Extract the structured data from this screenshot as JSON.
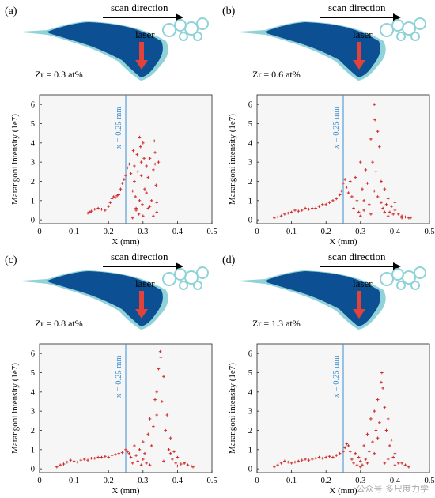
{
  "colors": {
    "pool_dark": "#0d4f93",
    "pool_light": "#8fd3d8",
    "arrow_red": "#e2423a",
    "scatter": "#cf2b2b",
    "ref_line": "#3b8fd0",
    "plot_bg": "#f6f6f6"
  },
  "watermark": "公众号·多尺度力学",
  "chart_data": [
    {
      "panel": "(a)",
      "scan_label": "scan direction",
      "laser_label": "laser",
      "composition": "Zr = 0.3 at%",
      "type": "scatter",
      "xlabel": "X (mm)",
      "ylabel": "Marangoni intensity (1e7)",
      "xlim": [
        0,
        0.5
      ],
      "ylim": [
        -0.2,
        6.5
      ],
      "xticks": [
        0,
        0.1,
        0.2,
        0.3,
        0.4,
        0.5
      ],
      "xtick_labels": [
        "0",
        "0.1",
        "0.2",
        "0.3",
        "0.4",
        "0.5"
      ],
      "yticks": [
        0,
        1,
        2,
        3,
        4,
        5,
        6
      ],
      "ref_line": {
        "x": 0.25,
        "label": "x = 0.25 mm"
      },
      "series": [
        {
          "x": [
            0.14,
            0.145,
            0.15,
            0.16,
            0.17,
            0.18,
            0.19,
            0.2,
            0.205,
            0.21,
            0.215,
            0.22,
            0.225,
            0.23,
            0.235,
            0.24,
            0.245,
            0.25,
            0.255,
            0.26,
            0.265,
            0.27,
            0.272,
            0.275,
            0.278,
            0.28,
            0.283,
            0.285,
            0.288,
            0.29,
            0.293,
            0.295,
            0.298,
            0.3,
            0.303,
            0.305,
            0.31,
            0.315,
            0.32,
            0.325,
            0.33,
            0.333,
            0.335,
            0.338,
            0.34,
            0.345,
            0.27,
            0.28,
            0.29,
            0.3,
            0.31,
            0.32,
            0.33,
            0.34,
            0.275,
            0.295,
            0.315,
            0.335
          ],
          "y": [
            0.35,
            0.4,
            0.45,
            0.55,
            0.6,
            0.55,
            0.5,
            0.7,
            0.9,
            1.1,
            1.2,
            1.15,
            1.25,
            1.3,
            1.6,
            1.9,
            2.1,
            2.3,
            2.7,
            2.9,
            2.4,
            1.5,
            3.6,
            2.8,
            1.2,
            0.5,
            3.4,
            2.5,
            0.3,
            4.3,
            3.8,
            2.3,
            0.8,
            4.0,
            3.2,
            1.6,
            2.8,
            0.6,
            3.2,
            1.0,
            2.6,
            4.1,
            3.5,
            1.8,
            0.4,
            3.0,
            0.1,
            0.6,
            1.0,
            0.2,
            1.4,
            0.7,
            0.2,
            0.9,
            2.0,
            3.0,
            2.2,
            2.9
          ]
        }
      ]
    },
    {
      "panel": "(b)",
      "scan_label": "scan direction",
      "laser_label": "laser",
      "composition": "Zr = 0.6 at%",
      "type": "scatter",
      "xlabel": "X (mm)",
      "ylabel": "Marangoni intensity (1e7)",
      "xlim": [
        0,
        0.5
      ],
      "ylim": [
        -0.2,
        6.5
      ],
      "xticks": [
        0,
        0.1,
        0.2,
        0.3,
        0.4,
        0.5
      ],
      "xtick_labels": [
        "0",
        "0.1",
        "0.2",
        "0.3",
        "0.4",
        "0.5"
      ],
      "yticks": [
        0,
        1,
        2,
        3,
        4,
        5,
        6
      ],
      "ref_line": {
        "x": 0.25,
        "label": "x = 0.25 mm"
      },
      "series": [
        {
          "x": [
            0.05,
            0.06,
            0.07,
            0.08,
            0.09,
            0.1,
            0.11,
            0.12,
            0.13,
            0.14,
            0.15,
            0.16,
            0.17,
            0.18,
            0.19,
            0.2,
            0.21,
            0.22,
            0.23,
            0.24,
            0.245,
            0.25,
            0.255,
            0.26,
            0.265,
            0.27,
            0.275,
            0.28,
            0.285,
            0.29,
            0.295,
            0.3,
            0.305,
            0.31,
            0.315,
            0.32,
            0.325,
            0.33,
            0.335,
            0.34,
            0.342,
            0.345,
            0.35,
            0.355,
            0.36,
            0.365,
            0.37,
            0.375,
            0.38,
            0.385,
            0.39,
            0.395,
            0.4,
            0.41,
            0.42,
            0.43,
            0.44,
            0.445,
            0.3,
            0.31,
            0.33,
            0.34,
            0.36,
            0.38,
            0.4,
            0.42,
            0.35,
            0.37
          ],
          "y": [
            0.1,
            0.15,
            0.2,
            0.3,
            0.35,
            0.4,
            0.5,
            0.45,
            0.5,
            0.6,
            0.55,
            0.6,
            0.6,
            0.7,
            0.8,
            0.8,
            0.9,
            1.0,
            1.1,
            1.3,
            1.5,
            1.9,
            2.1,
            1.7,
            1.4,
            2.0,
            1.2,
            0.6,
            2.2,
            1.0,
            0.4,
            3.0,
            1.6,
            0.5,
            2.6,
            1.9,
            0.8,
            4.2,
            3.0,
            6.0,
            5.2,
            2.5,
            1.2,
            3.8,
            2.0,
            0.6,
            1.6,
            0.8,
            1.1,
            0.4,
            0.7,
            0.3,
            0.5,
            0.3,
            0.2,
            0.15,
            0.1,
            0.1,
            0.2,
            1.0,
            0.3,
            1.5,
            0.9,
            0.2,
            0.9,
            0.1,
            4.6,
            0.4
          ]
        }
      ]
    },
    {
      "panel": "(c)",
      "scan_label": "scan direction",
      "laser_label": "laser",
      "composition": "Zr = 0.8 at%",
      "type": "scatter",
      "xlabel": "X (mm)",
      "ylabel": "Marangoni intensity (1e7)",
      "xlim": [
        0,
        0.5
      ],
      "ylim": [
        -0.2,
        6.5
      ],
      "xticks": [
        0,
        0.1,
        0.2,
        0.3,
        0.4,
        0.5
      ],
      "xtick_labels": [
        "0",
        "0.1",
        "0.2",
        "0.3",
        "0.4",
        "0.5"
      ],
      "yticks": [
        0,
        1,
        2,
        3,
        4,
        5,
        6
      ],
      "ref_line": {
        "x": 0.25,
        "label": "x = 0.25 mm"
      },
      "series": [
        {
          "x": [
            0.05,
            0.06,
            0.07,
            0.08,
            0.09,
            0.1,
            0.11,
            0.12,
            0.13,
            0.14,
            0.15,
            0.16,
            0.17,
            0.18,
            0.19,
            0.2,
            0.21,
            0.22,
            0.23,
            0.24,
            0.25,
            0.255,
            0.26,
            0.265,
            0.27,
            0.275,
            0.28,
            0.285,
            0.29,
            0.295,
            0.3,
            0.305,
            0.31,
            0.315,
            0.32,
            0.325,
            0.33,
            0.335,
            0.34,
            0.345,
            0.35,
            0.352,
            0.355,
            0.36,
            0.365,
            0.37,
            0.375,
            0.38,
            0.385,
            0.39,
            0.395,
            0.4,
            0.41,
            0.42,
            0.43,
            0.44,
            0.445,
            0.3,
            0.32,
            0.34,
            0.36,
            0.38,
            0.4,
            0.42
          ],
          "y": [
            0.1,
            0.2,
            0.25,
            0.35,
            0.45,
            0.4,
            0.35,
            0.45,
            0.5,
            0.45,
            0.55,
            0.55,
            0.6,
            0.6,
            0.65,
            0.6,
            0.7,
            0.75,
            0.8,
            0.85,
            1.0,
            0.9,
            0.8,
            0.6,
            0.3,
            1.2,
            0.7,
            0.4,
            1.0,
            0.2,
            1.4,
            0.8,
            0.3,
            1.8,
            2.6,
            1.2,
            2.2,
            3.6,
            4.0,
            5.2,
            6.1,
            5.8,
            3.5,
            4.8,
            2.0,
            2.8,
            1.0,
            1.6,
            0.5,
            0.9,
            0.3,
            0.6,
            0.25,
            0.3,
            0.2,
            0.15,
            0.1,
            0.5,
            0.2,
            2.8,
            0.4,
            0.8,
            0.15,
            0.3
          ]
        }
      ]
    },
    {
      "panel": "(d)",
      "scan_label": "scan direction",
      "laser_label": "laser",
      "composition": "Zr = 1.3 at%",
      "type": "scatter",
      "xlabel": "X (mm)",
      "ylabel": "Marangoni intensity (1e7)",
      "xlim": [
        0,
        0.5
      ],
      "ylim": [
        -0.2,
        6.5
      ],
      "xticks": [
        0,
        0.1,
        0.2,
        0.3,
        0.4,
        0.5
      ],
      "xtick_labels": [
        "0",
        "0.1",
        "0.2",
        "0.3",
        "0.4",
        "0.5"
      ],
      "yticks": [
        0,
        1,
        2,
        3,
        4,
        5,
        6
      ],
      "ref_line": {
        "x": 0.25,
        "label": "x = 0.25 mm"
      },
      "series": [
        {
          "x": [
            0.05,
            0.06,
            0.07,
            0.08,
            0.09,
            0.1,
            0.11,
            0.12,
            0.13,
            0.14,
            0.15,
            0.16,
            0.17,
            0.18,
            0.19,
            0.2,
            0.21,
            0.22,
            0.23,
            0.24,
            0.25,
            0.255,
            0.26,
            0.265,
            0.27,
            0.275,
            0.28,
            0.285,
            0.29,
            0.295,
            0.3,
            0.305,
            0.31,
            0.315,
            0.32,
            0.325,
            0.33,
            0.335,
            0.34,
            0.345,
            0.35,
            0.355,
            0.36,
            0.362,
            0.365,
            0.37,
            0.375,
            0.38,
            0.385,
            0.39,
            0.395,
            0.4,
            0.41,
            0.42,
            0.43,
            0.44,
            0.3,
            0.32,
            0.34,
            0.35,
            0.37,
            0.38,
            0.4
          ],
          "y": [
            0.1,
            0.2,
            0.3,
            0.4,
            0.35,
            0.3,
            0.35,
            0.4,
            0.45,
            0.5,
            0.45,
            0.5,
            0.55,
            0.6,
            0.55,
            0.6,
            0.65,
            0.6,
            0.7,
            0.8,
            0.9,
            1.1,
            1.3,
            1.2,
            0.9,
            0.5,
            0.3,
            0.8,
            0.2,
            0.6,
            0.4,
            0.2,
            1.2,
            0.5,
            1.8,
            0.9,
            2.6,
            1.4,
            3.0,
            2.0,
            3.6,
            2.4,
            4.5,
            5.0,
            4.2,
            3.2,
            2.0,
            2.6,
            1.2,
            1.5,
            0.6,
            0.8,
            0.3,
            0.3,
            0.2,
            0.1,
            0.1,
            0.3,
            0.8,
            1.6,
            0.3,
            0.5,
            0.2
          ]
        }
      ]
    }
  ]
}
